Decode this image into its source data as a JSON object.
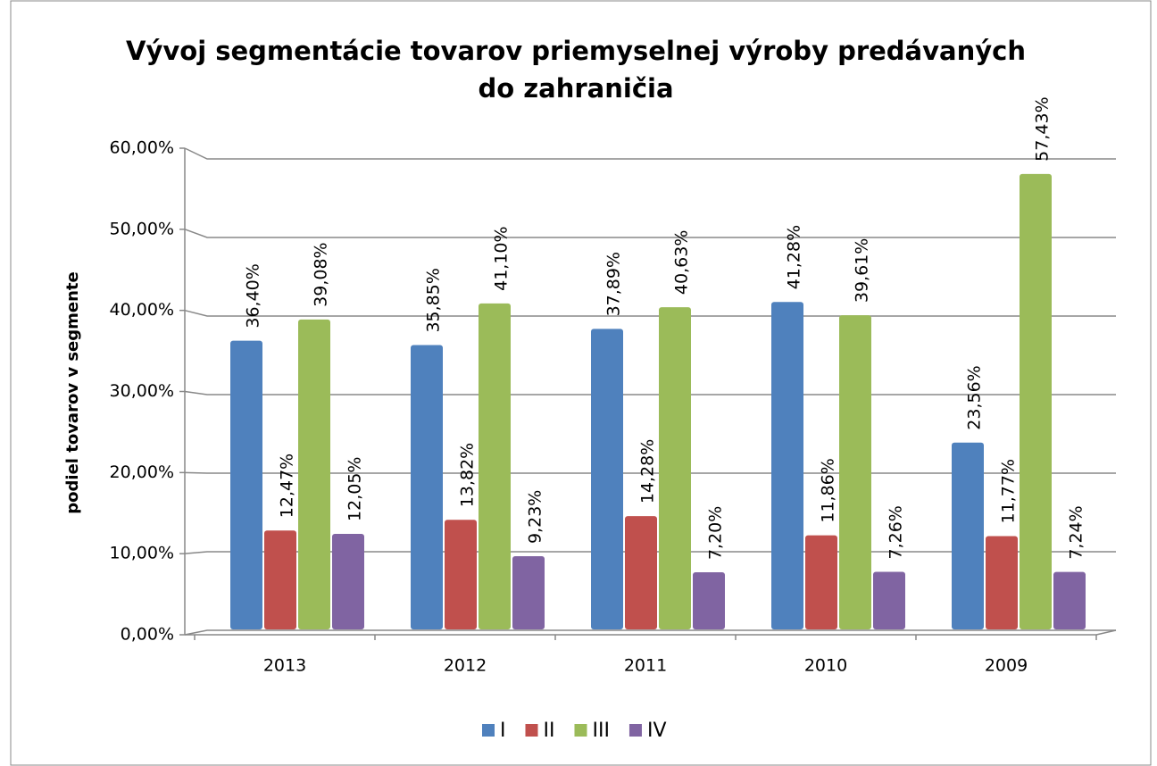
{
  "chart_data": {
    "type": "bar",
    "title": "Vývoj segmentácie tovarov priemyselnej výroby predávaných do zahraničia",
    "y_label": "podiel tovarov v segmente",
    "categories": [
      "2013",
      "2012",
      "2011",
      "2010",
      "2009"
    ],
    "series": [
      {
        "name": "I",
        "color": "#4f81bd",
        "values": [
          36.4,
          35.85,
          37.89,
          41.28,
          23.56
        ],
        "value_labels": [
          "36,40%",
          "35,85%",
          "37,89%",
          "41,28%",
          "23,56%"
        ]
      },
      {
        "name": "II",
        "color": "#c0504d",
        "values": [
          12.47,
          13.82,
          14.28,
          11.86,
          11.77
        ],
        "value_labels": [
          "12,47%",
          "13,82%",
          "14,28%",
          "11,86%",
          "11,77%"
        ]
      },
      {
        "name": "III",
        "color": "#9bbb59",
        "values": [
          39.08,
          41.1,
          40.63,
          39.61,
          57.43
        ],
        "value_labels": [
          "39,08%",
          "41,10%",
          "40,63%",
          "39,61%",
          "57,43%"
        ]
      },
      {
        "name": "IV",
        "color": "#8064a2",
        "values": [
          12.05,
          9.23,
          7.2,
          7.26,
          7.24
        ],
        "value_labels": [
          "12,05%",
          "9,23%",
          "7,20%",
          "7,26%",
          "7,24%"
        ]
      }
    ],
    "ylim": [
      0,
      60
    ],
    "yticks": [
      {
        "value": 0,
        "label": "0,00%"
      },
      {
        "value": 10,
        "label": "10,00%"
      },
      {
        "value": 20,
        "label": "20,00%"
      },
      {
        "value": 30,
        "label": "30,00%"
      },
      {
        "value": 40,
        "label": "40,00%"
      },
      {
        "value": 50,
        "label": "50,00%"
      },
      {
        "value": 60,
        "label": "60,00%"
      }
    ],
    "grid": true,
    "legend": "bottom"
  }
}
